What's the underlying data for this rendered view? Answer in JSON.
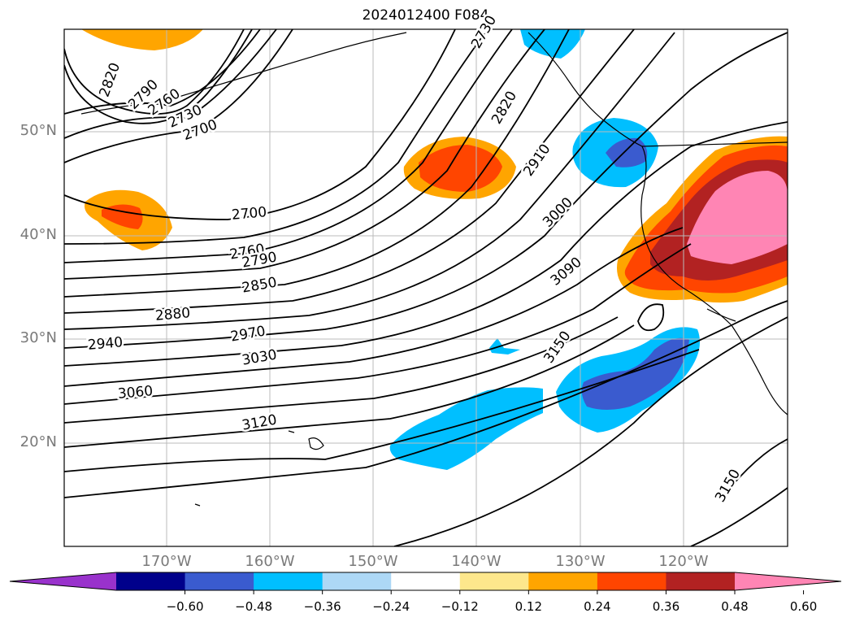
{
  "title": "2024012400 F084",
  "lat_labels": [
    "50°N",
    "40°N",
    "30°N",
    "20°N"
  ],
  "lon_labels": [
    "170°W",
    "160°W",
    "150°W",
    "140°W",
    "130°W",
    "120°W"
  ],
  "contour_labels": [
    "2820",
    "2790",
    "2760",
    "2730",
    "2700",
    "2730",
    "2820",
    "2910",
    "3000",
    "3090",
    "3150",
    "2700",
    "2760",
    "2790",
    "2850",
    "2880",
    "2940",
    "2970",
    "3030",
    "3060",
    "3120",
    "3150"
  ],
  "colorbar": {
    "ticks": [
      "−0.60",
      "−0.48",
      "−0.36",
      "−0.24",
      "−0.12",
      "0.12",
      "0.24",
      "0.36",
      "0.48",
      "0.60"
    ],
    "colors": [
      "#9932cc",
      "#00008b",
      "#3a5bcf",
      "#00bfff",
      "#add8f6",
      "#ffffff",
      "#fde78c",
      "#ffa500",
      "#ff4500",
      "#b22222",
      "#ff85b4"
    ]
  }
}
